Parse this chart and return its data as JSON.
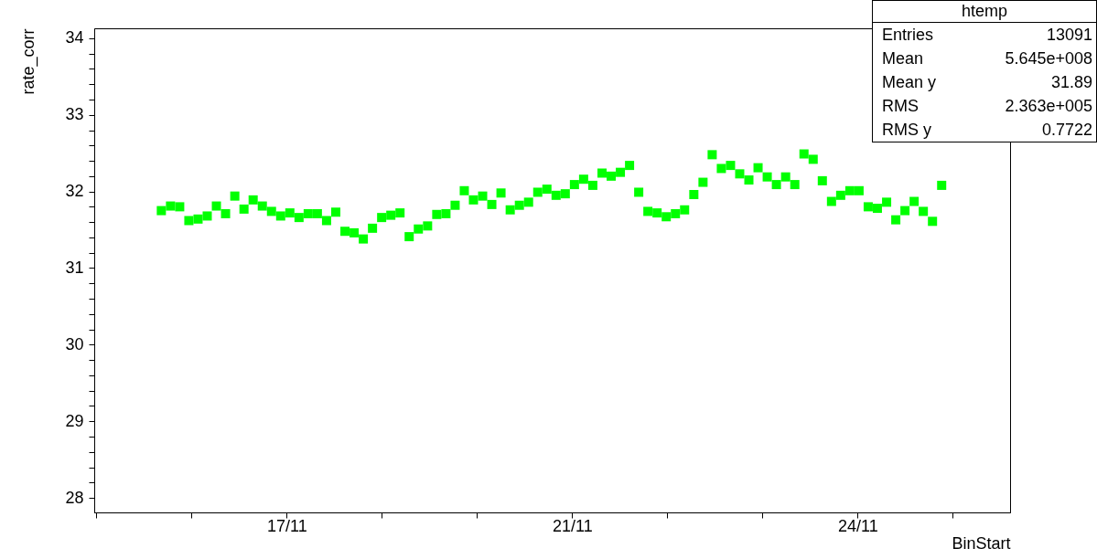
{
  "chart_data": {
    "type": "scatter",
    "xlabel": "BinStart",
    "ylabel": "rate_corr",
    "marker": "square",
    "color": "#00ff00",
    "annotations": [
      "htemp",
      "Entries 13091",
      "Mean 5.645e+008",
      "Mean y 31.89",
      "RMS 2.363e+005",
      "RMS y 0.7722"
    ],
    "x": [
      "--11-15T23:07",
      "--11-16T01:49",
      "--11-16T04:31",
      "--11-16T07:13",
      "--11-16T09:55",
      "--11-16T12:37",
      "--11-16T15:19",
      "--11-16T18:01",
      "--11-16T20:44",
      "--11-16T23:26",
      "--11-17T02:08",
      "--11-17T04:50",
      "--11-17T07:32",
      "--11-17T10:14",
      "--11-17T12:56",
      "--11-17T15:38",
      "--11-17T18:20",
      "--11-17T21:02",
      "--11-17T23:44",
      "--11-18T02:27",
      "--11-18T05:09",
      "--11-18T07:51",
      "--11-18T10:33",
      "--11-18T13:15",
      "--11-18T15:57",
      "--11-18T18:39",
      "--11-18T21:21",
      "--11-19T00:03",
      "--11-19T02:45",
      "--11-19T05:28",
      "--11-19T08:10",
      "--11-19T10:52",
      "--11-19T13:34",
      "--11-19T16:16",
      "--11-19T18:58",
      "--11-19T21:40",
      "--11-20T00:22",
      "--11-20T03:04",
      "--11-20T05:47",
      "--11-20T08:29",
      "--11-20T11:11",
      "--11-20T13:53",
      "--11-20T16:35",
      "--11-20T19:17",
      "--11-20T21:59",
      "--11-21T00:41",
      "--11-21T03:23",
      "--11-21T06:05",
      "--11-21T08:48",
      "--11-21T11:30",
      "--11-21T14:12",
      "--11-21T16:54",
      "--11-21T19:36",
      "--11-21T22:18",
      "--11-22T01:00",
      "--11-22T03:42",
      "--11-22T06:24",
      "--11-22T09:06",
      "--11-22T11:49",
      "--11-22T14:31",
      "--11-22T17:13",
      "--11-22T19:55",
      "--11-22T22:37",
      "--11-23T01:19",
      "--11-23T04:01",
      "--11-23T06:43",
      "--11-23T09:25",
      "--11-23T12:07",
      "--11-23T14:50",
      "--11-23T17:32",
      "--11-23T20:14",
      "--11-23T22:56",
      "--11-24T01:38",
      "--11-24T04:20",
      "--11-24T07:02",
      "--11-24T09:44",
      "--11-24T12:26",
      "--11-24T15:08",
      "--11-24T17:50",
      "--11-24T20:33",
      "--11-24T23:15",
      "--11-25T01:57",
      "--11-25T04:39",
      "--11-25T07:21",
      "--11-25T10:03",
      "--11-25T12:45"
    ],
    "values": [
      31.75,
      31.81,
      31.8,
      31.62,
      31.64,
      31.68,
      31.81,
      31.71,
      31.94,
      31.77,
      31.89,
      31.81,
      31.74,
      31.68,
      31.72,
      31.66,
      31.71,
      31.71,
      31.62,
      31.73,
      31.48,
      31.46,
      31.38,
      31.52,
      31.66,
      31.69,
      31.72,
      31.41,
      31.51,
      31.55,
      31.7,
      31.71,
      31.82,
      32.01,
      31.89,
      31.94,
      31.83,
      31.98,
      31.76,
      31.82,
      31.86,
      31.99,
      32.03,
      31.95,
      31.97,
      32.09,
      32.16,
      32.08,
      32.24,
      32.2,
      32.25,
      32.34,
      31.99,
      31.74,
      31.72,
      31.67,
      31.71,
      31.76,
      31.96,
      32.12,
      32.48,
      32.3,
      32.34,
      32.23,
      32.15,
      32.31,
      32.19,
      32.09,
      32.19,
      32.09,
      32.49,
      32.42,
      32.14,
      31.87,
      31.95,
      32.01,
      32.01,
      31.8,
      31.78,
      31.86,
      31.63,
      31.75,
      31.87,
      31.74,
      31.61,
      32.08
    ],
    "xlim": [
      "--11-15T03:22",
      "--11-26T08:53"
    ],
    "xticks": [
      {
        "value": "--11-15T04:00",
        "label": null
      },
      {
        "value": "--11-16T08:00",
        "label": null
      },
      {
        "value": "--11-17T12:00",
        "label": "17/11"
      },
      {
        "value": "--11-18T16:00",
        "label": null
      },
      {
        "value": "--11-19T20:00",
        "label": null
      },
      {
        "value": "--11-21T00:00",
        "label": "21/11"
      },
      {
        "value": "--11-22T04:00",
        "label": null
      },
      {
        "value": "--11-23T08:00",
        "label": null
      },
      {
        "value": "--11-24T12:00",
        "label": "24/11"
      },
      {
        "value": "--11-25T16:00",
        "label": null
      }
    ],
    "ylim": [
      27.81,
      34.13
    ],
    "yticks": [
      28,
      {
        "value": 28.2,
        "label": null
      },
      {
        "value": 28.4,
        "label": null
      },
      {
        "value": 28.6,
        "label": null
      },
      {
        "value": 28.8,
        "label": null
      },
      29,
      {
        "value": 29.2,
        "label": null
      },
      {
        "value": 29.4,
        "label": null
      },
      {
        "value": 29.6,
        "label": null
      },
      {
        "value": 29.8,
        "label": null
      },
      30,
      {
        "value": 30.2,
        "label": null
      },
      {
        "value": 30.4,
        "label": null
      },
      {
        "value": 30.6,
        "label": null
      },
      {
        "value": 30.8,
        "label": null
      },
      31,
      {
        "value": 31.2,
        "label": null
      },
      {
        "value": 31.4,
        "label": null
      },
      {
        "value": 31.6,
        "label": null
      },
      {
        "value": 31.8,
        "label": null
      },
      32,
      {
        "value": 32.2,
        "label": null
      },
      {
        "value": 32.4,
        "label": null
      },
      {
        "value": 32.6,
        "label": null
      },
      {
        "value": 32.8,
        "label": null
      },
      33,
      {
        "value": 33.2,
        "label": null
      },
      {
        "value": 33.4,
        "label": null
      },
      {
        "value": 33.6,
        "label": null
      },
      {
        "value": 33.8,
        "label": null
      },
      34
    ]
  }
}
